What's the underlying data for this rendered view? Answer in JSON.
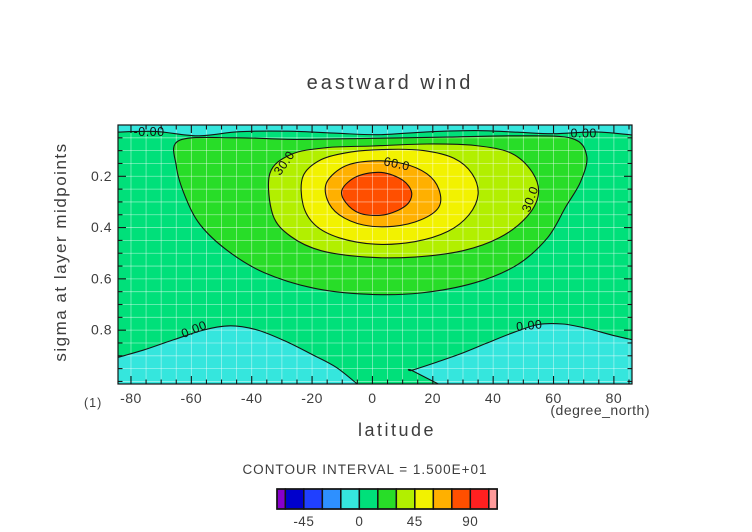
{
  "chart_data": {
    "type": "filled_contour",
    "title": "eastward wind",
    "xlabel": "latitude",
    "x_unit_label": "(degree_north)",
    "corner_label": "(1)",
    "ylabel": "sigma at layer midpoints",
    "x_range": [
      -84.3,
      86
    ],
    "y_range": [
      0,
      1.01
    ],
    "x_major_ticks": [
      -80,
      -60,
      -40,
      -20,
      0,
      20,
      40,
      60,
      80
    ],
    "x_major_tick_labels": [
      "-80",
      "-60",
      "-40",
      "-20",
      "0",
      "20",
      "40",
      "60",
      "80"
    ],
    "x_minor_step": 5,
    "y_major_ticks": [
      0.2,
      0.4,
      0.6,
      0.8
    ],
    "y_major_tick_labels": [
      "0.2",
      "0.4",
      "0.6",
      "0.8"
    ],
    "y_minor_step": 0.05,
    "grid": {
      "x_step": 5,
      "y_step": 0.05,
      "color": "rgba(255,255,255,0.5)"
    },
    "contour_interval": 15,
    "contour_levels": [
      0,
      15,
      30,
      45,
      60,
      75
    ],
    "contour_line_color": "#141414",
    "background_band": {
      "range": [
        0,
        15
      ],
      "color": "#00e07a"
    },
    "bands": [
      {
        "name": "negative-top-strip",
        "range": [
          -15,
          0
        ],
        "color": "#35e6dd",
        "closed": false,
        "points": [
          [
            -85.5,
            0.028
          ],
          [
            -72,
            0.025
          ],
          [
            -58,
            0.042
          ],
          [
            -44,
            0.026
          ],
          [
            -28,
            0.024
          ],
          [
            -12,
            0.032
          ],
          [
            2,
            0.038
          ],
          [
            18,
            0.027
          ],
          [
            34,
            0.022
          ],
          [
            48,
            0.028
          ],
          [
            60,
            0.034
          ],
          [
            74,
            0.027
          ],
          [
            87,
            0.04
          ]
        ],
        "close_path": [
          [
            88,
            -0.08
          ],
          [
            -87,
            -0.08
          ]
        ]
      },
      {
        "name": "negative-bottom-left-lobe",
        "range": [
          -15,
          0
        ],
        "color": "#35e6dd",
        "closed": false,
        "points": [
          [
            -85.5,
            0.91
          ],
          [
            -76,
            0.878
          ],
          [
            -66,
            0.838
          ],
          [
            -56,
            0.8
          ],
          [
            -47,
            0.783
          ],
          [
            -38,
            0.8
          ],
          [
            -29,
            0.842
          ],
          [
            -20,
            0.895
          ],
          [
            -12,
            0.945
          ],
          [
            -4,
            1.02
          ]
        ],
        "close_path": [
          [
            -87,
            1.08
          ]
        ]
      },
      {
        "name": "negative-bottom-right-lobe",
        "range": [
          -15,
          0
        ],
        "color": "#35e6dd",
        "closed": false,
        "points": [
          [
            23.5,
            1.02
          ],
          [
            13,
            0.957
          ],
          [
            13,
            0.957
          ],
          [
            20,
            0.93
          ],
          [
            29,
            0.893
          ],
          [
            38,
            0.85
          ],
          [
            47,
            0.808
          ],
          [
            55,
            0.778
          ],
          [
            63,
            0.776
          ],
          [
            71,
            0.793
          ],
          [
            79,
            0.818
          ],
          [
            87,
            0.84
          ]
        ],
        "close_path": [
          [
            88,
            1.08
          ]
        ]
      },
      {
        "name": "band-15-30",
        "range": [
          15,
          30
        ],
        "color": "#28dd28",
        "closed": true,
        "points": [
          [
            -64,
            0.06
          ],
          [
            -45,
            0.05
          ],
          [
            -25,
            0.056
          ],
          [
            0,
            0.052
          ],
          [
            25,
            0.047
          ],
          [
            48,
            0.042
          ],
          [
            66,
            0.052
          ],
          [
            71,
            0.12
          ],
          [
            69,
            0.22
          ],
          [
            64,
            0.32
          ],
          [
            58,
            0.44
          ],
          [
            48,
            0.545
          ],
          [
            34,
            0.615
          ],
          [
            16,
            0.655
          ],
          [
            -2,
            0.66
          ],
          [
            -20,
            0.635
          ],
          [
            -36,
            0.575
          ],
          [
            -48,
            0.49
          ],
          [
            -57,
            0.39
          ],
          [
            -62,
            0.28
          ],
          [
            -65,
            0.16
          ]
        ]
      },
      {
        "name": "band-30-45",
        "range": [
          30,
          45
        ],
        "color": "#b2ef00",
        "closed": true,
        "points": [
          [
            -34,
            0.19
          ],
          [
            -27,
            0.115
          ],
          [
            -15,
            0.088
          ],
          [
            0,
            0.082
          ],
          [
            18,
            0.074
          ],
          [
            34,
            0.08
          ],
          [
            46,
            0.11
          ],
          [
            53,
            0.185
          ],
          [
            55,
            0.27
          ],
          [
            51,
            0.36
          ],
          [
            42,
            0.44
          ],
          [
            30,
            0.49
          ],
          [
            14,
            0.515
          ],
          [
            -2,
            0.515
          ],
          [
            -17,
            0.49
          ],
          [
            -27,
            0.435
          ],
          [
            -33,
            0.35
          ]
        ]
      },
      {
        "name": "band-45-60",
        "range": [
          45,
          60
        ],
        "color": "#f2f200",
        "closed": true,
        "points": [
          [
            -23,
            0.2
          ],
          [
            -17,
            0.135
          ],
          [
            -7,
            0.105
          ],
          [
            5,
            0.095
          ],
          [
            17,
            0.1
          ],
          [
            27,
            0.13
          ],
          [
            33,
            0.19
          ],
          [
            35,
            0.27
          ],
          [
            32,
            0.35
          ],
          [
            25,
            0.415
          ],
          [
            14,
            0.455
          ],
          [
            1,
            0.465
          ],
          [
            -11,
            0.44
          ],
          [
            -19,
            0.39
          ],
          [
            -23,
            0.31
          ]
        ]
      },
      {
        "name": "band-60-75",
        "range": [
          60,
          75
        ],
        "color": "#ffb000",
        "closed": true,
        "points": [
          [
            -15,
            0.22
          ],
          [
            -9,
            0.16
          ],
          [
            0,
            0.14
          ],
          [
            10,
            0.15
          ],
          [
            18,
            0.19
          ],
          [
            22,
            0.25
          ],
          [
            22,
            0.32
          ],
          [
            16,
            0.37
          ],
          [
            7,
            0.395
          ],
          [
            -3,
            0.39
          ],
          [
            -11,
            0.35
          ],
          [
            -15,
            0.29
          ]
        ]
      },
      {
        "name": "band-75-90",
        "range": [
          75,
          90
        ],
        "color": "#ff4f00",
        "closed": true,
        "points": [
          [
            -10,
            0.25
          ],
          [
            -5,
            0.2
          ],
          [
            3,
            0.185
          ],
          [
            10,
            0.215
          ],
          [
            13,
            0.265
          ],
          [
            11,
            0.315
          ],
          [
            4,
            0.35
          ],
          [
            -4,
            0.345
          ],
          [
            -9,
            0.3
          ]
        ]
      }
    ],
    "contour_labels": [
      {
        "text": "-0.00",
        "lat": -74,
        "sigma": 0.031,
        "rot": 0
      },
      {
        "text": "0.00",
        "lat": 70,
        "sigma": 0.036,
        "rot": 0
      },
      {
        "text": "30.0",
        "lat": -29,
        "sigma": 0.15,
        "rot": -55
      },
      {
        "text": "60.0",
        "lat": 8,
        "sigma": 0.155,
        "rot": 12
      },
      {
        "text": "30.0",
        "lat": 52.5,
        "sigma": 0.29,
        "rot": -70
      },
      {
        "text": "0.00",
        "lat": -59,
        "sigma": 0.8,
        "rot": -22
      },
      {
        "text": "0.00",
        "lat": 52,
        "sigma": 0.785,
        "rot": -6
      }
    ],
    "colorbar": {
      "caption": "CONTOUR INTERVAL  =  1.500E+01",
      "border_color": "#141414",
      "segments": [
        {
          "color": "#8800cc",
          "w": 0.45
        },
        {
          "color": "#0000cc",
          "w": 1
        },
        {
          "color": "#2040ff",
          "w": 1
        },
        {
          "color": "#2e90ff",
          "w": 1
        },
        {
          "color": "#35e6dd",
          "w": 1
        },
        {
          "color": "#00e07a",
          "w": 1
        },
        {
          "color": "#28dd28",
          "w": 1
        },
        {
          "color": "#b2ef00",
          "w": 1
        },
        {
          "color": "#f2f200",
          "w": 1
        },
        {
          "color": "#ffb000",
          "w": 1
        },
        {
          "color": "#ff4f00",
          "w": 1
        },
        {
          "color": "#ff2020",
          "w": 1
        },
        {
          "color": "#ff9a9a",
          "w": 0.45
        }
      ],
      "tick_labels": [
        {
          "text": "-45",
          "after_segment": 2
        },
        {
          "text": "0",
          "after_segment": 5
        },
        {
          "text": "45",
          "after_segment": 8
        },
        {
          "text": "90",
          "after_segment": 11
        }
      ]
    }
  }
}
